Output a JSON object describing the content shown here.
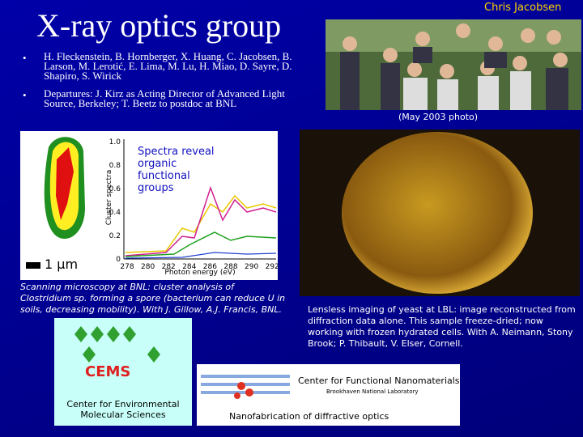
{
  "header": {
    "title": "X-ray optics group",
    "credit": "Chris Jacobsen"
  },
  "bullets": [
    "H. Fleckenstein, B. Hornberger, X. Huang, C. Jacobsen, B. Larson, M. Lerotić, E. Lima, M. Lu, H. Miao, D. Sayre, D. Shapiro, S. Wirick",
    "Departures: J. Kirz as Acting Director of Advanced Light Source, Berkeley; T. Beetz to postdoc at BNL"
  ],
  "photo": {
    "caption": "(May 2003 photo)"
  },
  "spectra_figure": {
    "overlay": "Spectra reveal organic functional groups",
    "scale_bar": "1 µm",
    "y_label": "Cluster spectra",
    "x_label": "Photon energy (eV)",
    "yticks": [
      "0",
      "0.2",
      "0.4",
      "0.6",
      "0.8",
      "1.0"
    ],
    "xticks": [
      "278",
      "280",
      "282",
      "284",
      "286",
      "288",
      "290",
      "292"
    ],
    "caption": [
      "Scanning microscopy at BNL: cluster analysis of ",
      "Clostridium",
      " sp. forming a spore (bacterium can reduce U in soils, decreasing mobility).  With J. Gillow, A.J. Francis, BNL."
    ]
  },
  "yeast_figure": {
    "caption": "Lensless imaging of yeast at LBL: image reconstructed from diffraction data alone.  This sample freeze-dried; now working with frozen hydrated cells.  With A. Neimann, Stony Brook; P. Thibault, V. Elser, Cornell."
  },
  "cems": {
    "logo": "CEMS",
    "name": "Center for Environmental Molecular Sciences"
  },
  "cfn": {
    "name": "Center for Functional Nanomaterials",
    "lab": "Brookhaven National Laboratory",
    "caption": "Nanofabrication of diffractive optics"
  }
}
